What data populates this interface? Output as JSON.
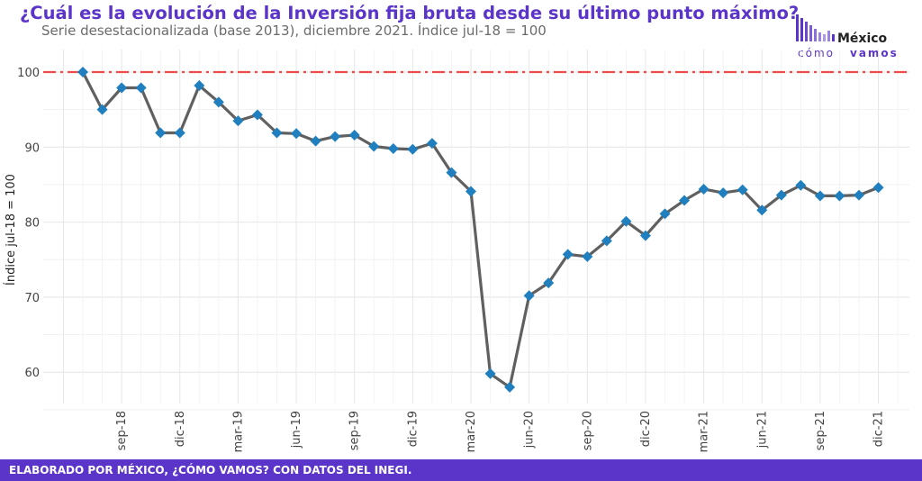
{
  "header": {
    "title": "¿Cuál es la evolución de la Inversión fija bruta desde su último punto máximo?",
    "subtitle": "Serie desestacionalizada (base 2013), diciembre 2021. Índice jul-18 = 100"
  },
  "logo": {
    "name": "México",
    "tagline_light": "cómo",
    "tagline_bold": "vamos"
  },
  "footer": {
    "text": "ELABORADO POR MÉXICO, ¿CÓMO VAMOS? CON DATOS DEL INEGI."
  },
  "colors": {
    "accent": "#5b35c9",
    "line": "#606060",
    "marker": "#1f7fbf",
    "reference": "#ef4b4b"
  },
  "chart_data": {
    "type": "line",
    "ylabel": "Índice jul-18 = 100",
    "ylim": [
      55,
      101
    ],
    "yticks": [
      60,
      70,
      80,
      90,
      100
    ],
    "reference_line": 100,
    "grid": true,
    "x": [
      "jul-18",
      "ago-18",
      "sep-18",
      "oct-18",
      "nov-18",
      "dic-18",
      "ene-19",
      "feb-19",
      "mar-19",
      "abr-19",
      "may-19",
      "jun-19",
      "jul-19",
      "ago-19",
      "sep-19",
      "oct-19",
      "nov-19",
      "dic-19",
      "ene-20",
      "feb-20",
      "mar-20",
      "abr-20",
      "may-20",
      "jun-20",
      "jul-20",
      "ago-20",
      "sep-20",
      "oct-20",
      "nov-20",
      "dic-20",
      "ene-21",
      "feb-21",
      "mar-21",
      "abr-21",
      "may-21",
      "jun-21",
      "jul-21",
      "ago-21",
      "sep-21",
      "oct-21",
      "nov-21",
      "dic-21"
    ],
    "xtick_labels": [
      "sep-18",
      "dic-18",
      "mar-19",
      "jun-19",
      "sep-19",
      "dic-19",
      "mar-20",
      "jun-20",
      "sep-20",
      "dic-20",
      "mar-21",
      "jun-21",
      "sep-21",
      "dic-21"
    ],
    "series": [
      {
        "values": [
          100,
          95,
          97.9,
          97.9,
          91.9,
          91.9,
          98.2,
          96,
          93.5,
          94.3,
          91.9,
          91.8,
          90.8,
          91.4,
          91.6,
          90.1,
          89.8,
          89.7,
          90.5,
          86.6,
          84.1,
          59.8,
          58,
          70.2,
          71.9,
          75.7,
          75.4,
          77.5,
          80.1,
          78.2,
          81.1,
          82.9,
          84.4,
          83.9,
          84.3,
          81.6,
          83.6,
          84.9,
          83.5,
          83.5,
          83.6,
          84.6
        ]
      }
    ]
  }
}
